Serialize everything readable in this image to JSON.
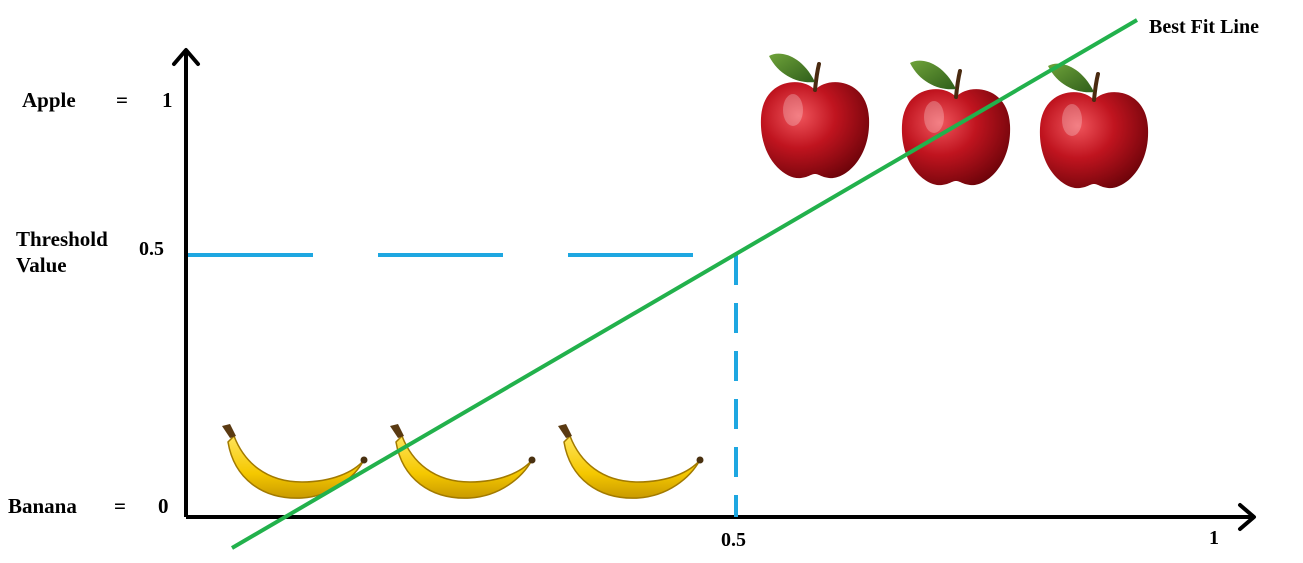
{
  "labels": {
    "apple_word": "Apple",
    "apple_equals": "=",
    "apple_value": "1",
    "threshold_line1": "Threshold",
    "threshold_line2": "Value",
    "threshold_value": "0.5",
    "banana_word": "Banana",
    "banana_equals": "=",
    "banana_value": "0",
    "x_tick_half": "0.5",
    "x_tick_one": "1",
    "best_fit": "Best Fit Line"
  },
  "chart_data": {
    "type": "line",
    "title": "",
    "xlabel": "",
    "ylabel": "",
    "x_ticks": [
      "0.5",
      "1"
    ],
    "y_ticks": [
      "0",
      "0.5",
      "1"
    ],
    "threshold": 0.5,
    "series": [
      {
        "name": "Best Fit Line",
        "color": "#22b14c"
      }
    ],
    "threshold_color": "#1ea7e1",
    "groups": [
      {
        "name": "Banana",
        "value": 0,
        "count": 3,
        "icon": "banana-icon"
      },
      {
        "name": "Apple",
        "value": 1,
        "count": 3,
        "icon": "apple-icon"
      }
    ]
  }
}
